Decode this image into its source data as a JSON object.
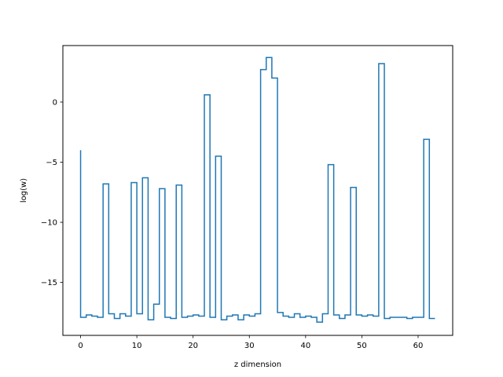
{
  "chart_data": {
    "type": "line",
    "style": "step",
    "xlabel": "z dimension",
    "ylabel": "log(w)",
    "xlim": [
      -3.15,
      66.15
    ],
    "ylim": [
      -19.4,
      4.7
    ],
    "xticks": [
      0,
      10,
      20,
      30,
      40,
      50,
      60
    ],
    "yticks": [
      -15,
      -10,
      -5,
      0
    ],
    "grid": false,
    "series": [
      {
        "color": "#1f77b4",
        "x": [
          0,
          1,
          2,
          3,
          4,
          5,
          6,
          7,
          8,
          9,
          10,
          11,
          12,
          13,
          14,
          15,
          16,
          17,
          18,
          19,
          20,
          21,
          22,
          23,
          24,
          25,
          26,
          27,
          28,
          29,
          30,
          31,
          32,
          33,
          34,
          35,
          36,
          37,
          38,
          39,
          40,
          41,
          42,
          43,
          44,
          45,
          46,
          47,
          48,
          49,
          50,
          51,
          52,
          53,
          54,
          55,
          56,
          57,
          58,
          59,
          60,
          61,
          62,
          63
        ],
        "y": [
          -4.0,
          -17.9,
          -17.7,
          -17.8,
          -17.9,
          -6.8,
          -17.6,
          -18.0,
          -17.6,
          -17.8,
          -6.7,
          -17.6,
          -6.3,
          -18.1,
          -16.8,
          -7.2,
          -17.9,
          -18.0,
          -6.9,
          -17.9,
          -17.8,
          -17.7,
          -17.8,
          0.6,
          -17.9,
          -4.5,
          -18.1,
          -17.8,
          -17.7,
          -18.1,
          -17.7,
          -17.8,
          -17.6,
          2.7,
          3.7,
          2.0,
          -17.5,
          -17.8,
          -17.9,
          -17.6,
          -17.9,
          -17.8,
          -17.9,
          -18.3,
          -17.6,
          -5.2,
          -17.7,
          -18.0,
          -17.7,
          -7.1,
          -17.7,
          -17.8,
          -17.7,
          -17.8,
          3.2,
          -18.0,
          -17.9,
          -17.9,
          -17.9,
          -18.0,
          -17.9,
          -17.9,
          -3.1,
          -18.0
        ]
      }
    ]
  }
}
